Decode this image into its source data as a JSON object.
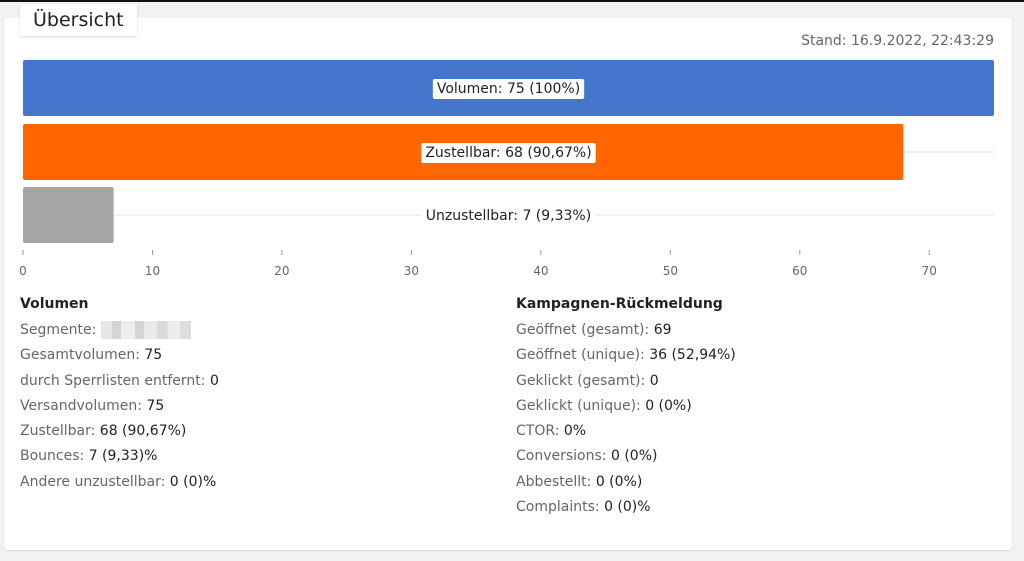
{
  "card": {
    "tab_title": "Übersicht",
    "stand_label": "Stand:",
    "stand_value": "16.9.2022, 22:43:29"
  },
  "colors": {
    "volumen": "#4477cc",
    "zustellbar": "#ff6600",
    "unzustellbar": "#a6a6a6"
  },
  "chart_data": {
    "type": "bar",
    "orientation": "horizontal",
    "categories": [
      "Volumen",
      "Zustellbar",
      "Unzustellbar"
    ],
    "values": [
      75,
      68,
      7
    ],
    "labels": [
      "Volumen: 75 (100%)",
      "Zustellbar: 68 (90,67%)",
      "Unzustellbar: 7 (9,33%)"
    ],
    "xlim": [
      0,
      75
    ],
    "xticks": [
      0,
      10,
      20,
      30,
      40,
      50,
      60,
      70
    ],
    "grid": false,
    "legend": "none"
  },
  "volumen": {
    "heading": "Volumen",
    "segmente_label": "Segmente:",
    "rows": [
      {
        "label": "Gesamtvolumen:",
        "value": "75"
      },
      {
        "label": "durch Sperrlisten entfernt:",
        "value": "0"
      },
      {
        "label": "Versandvolumen:",
        "value": "75"
      },
      {
        "label": "Zustellbar:",
        "value": "68 (90,67%)"
      },
      {
        "label": "Bounces:",
        "value": "7 (9,33)%"
      },
      {
        "label": "Andere unzustellbar:",
        "value": "0 (0)%"
      }
    ]
  },
  "kampagnen": {
    "heading": "Kampagnen-Rückmeldung",
    "rows": [
      {
        "label": "Geöffnet (gesamt):",
        "value": "69"
      },
      {
        "label": "Geöffnet (unique):",
        "value": "36 (52,94%)"
      },
      {
        "label": "Geklickt (gesamt):",
        "value": "0"
      },
      {
        "label": "Geklickt (unique):",
        "value": "0 (0%)"
      },
      {
        "label": "CTOR:",
        "value": "0%"
      },
      {
        "label": "Conversions:",
        "value": "0 (0%)"
      },
      {
        "label": "Abbestellt:",
        "value": "0 (0%)"
      },
      {
        "label": "Complaints:",
        "value": "0 (0)%"
      }
    ]
  }
}
